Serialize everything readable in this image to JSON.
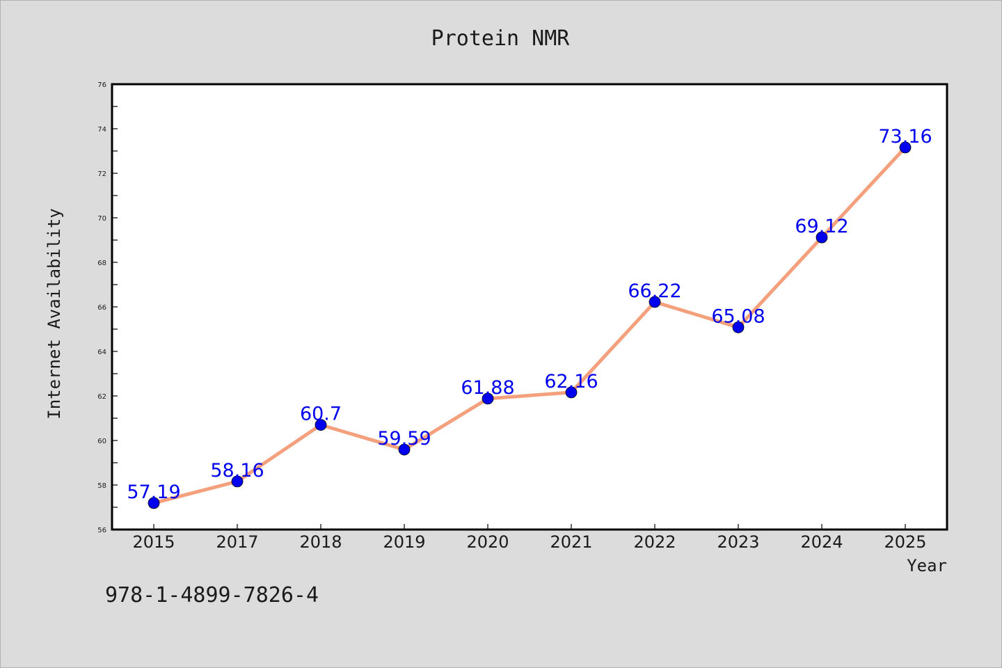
{
  "figure": {
    "background": "#dcdcdc",
    "plot_background": "#ffffff",
    "footnote": "978-1-4899-7826-4"
  },
  "chart_data": {
    "type": "line",
    "title": "Protein NMR",
    "xlabel": "Year",
    "ylabel": "Internet Availability",
    "categories": [
      "2015",
      "2017",
      "2018",
      "2019",
      "2020",
      "2021",
      "2022",
      "2023",
      "2024",
      "2025"
    ],
    "series": [
      {
        "values": [
          57.19,
          58.16,
          60.7,
          59.59,
          61.88,
          62.16,
          66.22,
          65.08,
          69.12,
          73.16
        ],
        "labels": [
          "57.19",
          "58.16",
          "60.7",
          "59.59",
          "61.88",
          "62.16",
          "66.22",
          "65.08",
          "69.12",
          "73.16"
        ],
        "line_color": "#f4a07c",
        "marker_color": "#0000ee",
        "label_color": "#0000ee"
      }
    ],
    "ylim": [
      56,
      76
    ],
    "yticks": [
      56,
      58,
      60,
      62,
      64,
      66,
      68,
      70,
      72,
      74,
      76
    ],
    "grid": false,
    "legend": false
  }
}
